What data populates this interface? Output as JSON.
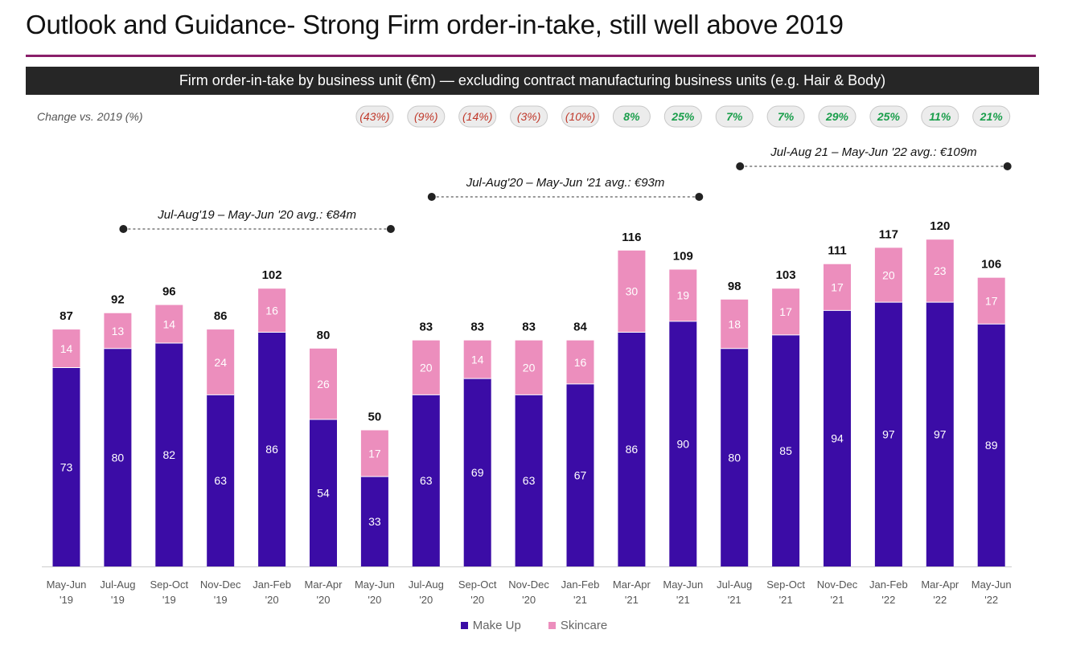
{
  "page": {
    "title": "Outlook and Guidance- Strong Firm order-in-take, still well above 2019",
    "banner": "Firm order-in-take by business unit (€m) — excluding contract manufacturing business units (e.g. Hair & Body)",
    "change_label": "Change vs. 2019 (%)"
  },
  "colors": {
    "makeup": "#3b0ca6",
    "skincare": "#ec8ebd",
    "negative": "#c0392b",
    "positive": "#1a9e4b",
    "title_rule": "#8a1f6a",
    "banner_bg": "#262626"
  },
  "chart_data": {
    "type": "bar",
    "stacked": true,
    "title": "Firm order-in-take by business unit (€m) — excluding contract manufacturing business units (e.g. Hair & Body)",
    "categories": [
      [
        "May-Jun",
        "'19"
      ],
      [
        "Jul-Aug",
        "'19"
      ],
      [
        "Sep-Oct",
        "'19"
      ],
      [
        "Nov-Dec",
        "'19"
      ],
      [
        "Jan-Feb",
        "'20"
      ],
      [
        "Mar-Apr",
        "'20"
      ],
      [
        "May-Jun",
        "'20"
      ],
      [
        "Jul-Aug",
        "'20"
      ],
      [
        "Sep-Oct",
        "'20"
      ],
      [
        "Nov-Dec",
        "'20"
      ],
      [
        "Jan-Feb",
        "'21"
      ],
      [
        "Mar-Apr",
        "'21"
      ],
      [
        "May-Jun",
        "'21"
      ],
      [
        "Jul-Aug",
        "'21"
      ],
      [
        "Sep-Oct",
        "'21"
      ],
      [
        "Nov-Dec",
        "'21"
      ],
      [
        "Jan-Feb",
        "'22"
      ],
      [
        "Mar-Apr",
        "'22"
      ],
      [
        "May-Jun",
        "'22"
      ]
    ],
    "series": [
      {
        "name": "Make Up",
        "values": [
          73,
          80,
          82,
          63,
          86,
          54,
          33,
          63,
          69,
          63,
          67,
          86,
          90,
          80,
          85,
          94,
          97,
          97,
          89
        ]
      },
      {
        "name": "Skincare",
        "values": [
          14,
          13,
          14,
          24,
          16,
          26,
          17,
          20,
          14,
          20,
          16,
          30,
          19,
          18,
          17,
          17,
          20,
          23,
          17
        ]
      }
    ],
    "totals": [
      87,
      92,
      96,
      86,
      102,
      80,
      50,
      83,
      83,
      83,
      84,
      116,
      109,
      98,
      103,
      111,
      117,
      120,
      106
    ],
    "change_vs_2019": [
      "",
      "",
      "",
      "",
      "",
      "",
      "(43%)",
      "(9%)",
      "(14%)",
      "(3%)",
      "(10%)",
      "8%",
      "25%",
      "7%",
      "7%",
      "29%",
      "25%",
      "11%",
      "21%"
    ],
    "change_vs_2019_pct": [
      null,
      null,
      null,
      null,
      null,
      null,
      -43,
      -9,
      -14,
      -3,
      -10,
      8,
      25,
      7,
      7,
      29,
      25,
      11,
      21
    ],
    "averages": [
      {
        "label": "Jul-Aug'19 – May-Jun '20 avg.: €84m",
        "from": 1,
        "to": 6,
        "value": 84
      },
      {
        "label": "Jul-Aug'20 – May-Jun '21 avg.: €93m",
        "from": 7,
        "to": 12,
        "value": 93
      },
      {
        "label": "Jul-Aug 21 – May-Jun '22 avg.: €109m",
        "from": 13,
        "to": 18,
        "value": 109
      }
    ],
    "ylim": [
      0,
      120
    ],
    "legend": [
      "Make Up",
      "Skincare"
    ],
    "legend_position": "bottom",
    "grid": false
  }
}
